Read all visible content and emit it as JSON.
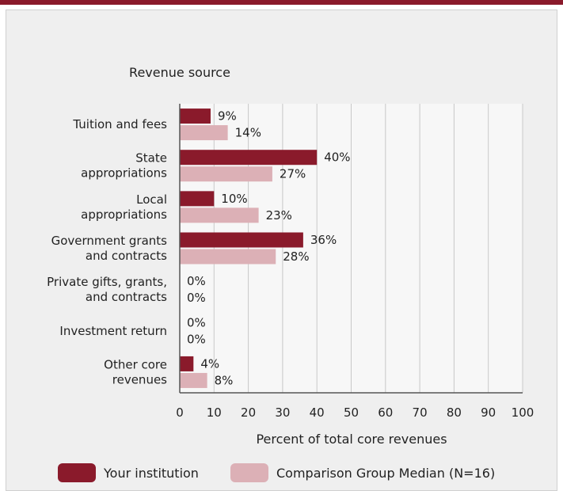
{
  "chart_data": {
    "type": "bar",
    "orientation": "horizontal",
    "title": "Revenue source",
    "xlabel": "Percent of total core revenues",
    "xlim": [
      0,
      100
    ],
    "xticks": [
      0,
      10,
      20,
      30,
      40,
      50,
      60,
      70,
      80,
      90,
      100
    ],
    "grid": true,
    "legend_position": "bottom",
    "categories": [
      [
        "Tuition and fees"
      ],
      [
        "State",
        "appropriations"
      ],
      [
        "Local",
        "appropriations"
      ],
      [
        "Government grants",
        "and contracts"
      ],
      [
        "Private gifts, grants,",
        "and contracts"
      ],
      [
        "Investment return"
      ],
      [
        "Other core",
        "revenues"
      ]
    ],
    "series": [
      {
        "name": "Your institution",
        "color": "#8a1a2b",
        "values": [
          9,
          40,
          10,
          36,
          0,
          0,
          4
        ],
        "labels": [
          "9%",
          "40%",
          "10%",
          "36%",
          "0%",
          "0%",
          "4%"
        ]
      },
      {
        "name": "Comparison Group Median (N=16)",
        "color": "#dcb0b6",
        "values": [
          14,
          27,
          23,
          28,
          0,
          0,
          8
        ],
        "labels": [
          "14%",
          "27%",
          "23%",
          "28%",
          "0%",
          "0%",
          "8%"
        ]
      }
    ]
  }
}
